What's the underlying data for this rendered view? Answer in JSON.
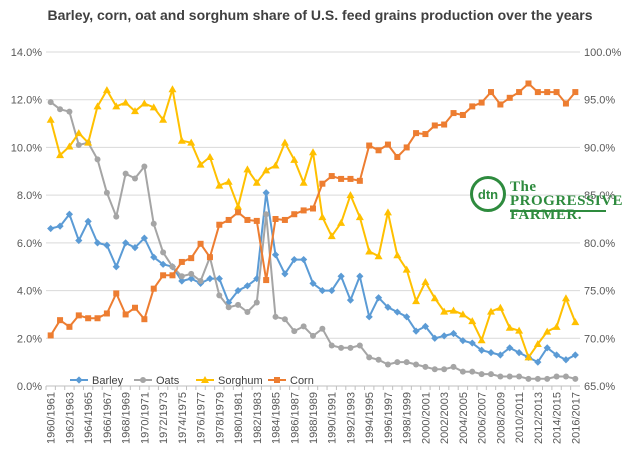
{
  "chart_data": {
    "type": "line",
    "title": "Barley, corn, oat and sorghum share of U.S. feed grains production over the years",
    "categories": [
      "1960/1961",
      "1961/1962",
      "1962/1963",
      "1963/1964",
      "1964/1965",
      "1965/1966",
      "1966/1967",
      "1967/1968",
      "1968/1969",
      "1969/1970",
      "1970/1971",
      "1971/1972",
      "1972/1973",
      "1973/1974",
      "1974/1975",
      "1975/1976",
      "1976/1977",
      "1977/1978",
      "1978/1979",
      "1979/1980",
      "1980/1981",
      "1981/1982",
      "1982/1983",
      "1983/1984",
      "1984/1985",
      "1985/1986",
      "1986/1987",
      "1987/1988",
      "1988/1989",
      "1989/1990",
      "1990/1991",
      "1991/1992",
      "1992/1993",
      "1993/1994",
      "1994/1995",
      "1995/1996",
      "1996/1997",
      "1997/1998",
      "1998/1999",
      "1999/2000",
      "2000/2001",
      "2001/2002",
      "2002/2003",
      "2003/2004",
      "2004/2005",
      "2005/2006",
      "2006/2007",
      "2007/2008",
      "2008/2009",
      "2009/2010",
      "2010/2011",
      "2011/2012",
      "2012/2013",
      "2013/2014",
      "2014/2015",
      "2015/2016",
      "2016/2017"
    ],
    "tick_labels": [
      "1960/1961",
      "1962/1963",
      "1964/1965",
      "1966/1967",
      "1968/1969",
      "1970/1971",
      "1972/1973",
      "1974/1975",
      "1976/1977",
      "1978/1979",
      "1980/1981",
      "1982/1983",
      "1984/1985",
      "1986/1987",
      "1988/1989",
      "1990/1991",
      "1992/1993",
      "1994/1995",
      "1996/1997",
      "1998/1999",
      "2000/2001",
      "2002/2003",
      "2004/2005",
      "2006/2007",
      "2008/2009",
      "2010/2011",
      "2012/2013",
      "2014/2015",
      "2016/2017"
    ],
    "y_left": {
      "min": 0,
      "max": 14,
      "step": 2,
      "tick_labels": [
        "0.0%",
        "2.0%",
        "4.0%",
        "6.0%",
        "8.0%",
        "10.0%",
        "12.0%",
        "14.0%"
      ]
    },
    "y_right": {
      "min": 65,
      "max": 100,
      "step": 5,
      "tick_labels": [
        "65.0%",
        "70.0%",
        "75.0%",
        "80.0%",
        "85.0%",
        "90.0%",
        "95.0%",
        "100.0%"
      ]
    },
    "grid": true,
    "legend": "bottom-left",
    "series": [
      {
        "name": "Barley",
        "axis": "left",
        "color": "#5b9bd5",
        "marker": "diamond",
        "values": [
          6.6,
          6.7,
          7.2,
          6.1,
          6.9,
          6.0,
          5.9,
          5.0,
          6.0,
          5.8,
          6.2,
          5.4,
          5.1,
          5.0,
          4.4,
          4.5,
          4.3,
          4.5,
          4.5,
          3.5,
          4.0,
          4.2,
          4.5,
          8.1,
          5.5,
          4.7,
          5.3,
          5.3,
          4.3,
          4.0,
          4.0,
          4.6,
          3.6,
          4.6,
          2.9,
          3.7,
          3.3,
          3.1,
          2.9,
          2.3,
          2.5,
          2.0,
          2.1,
          2.2,
          1.9,
          1.8,
          1.5,
          1.4,
          1.3,
          1.6,
          1.4,
          1.2,
          1.0,
          1.6,
          1.3,
          1.1,
          1.3
        ]
      },
      {
        "name": "Oats",
        "axis": "left",
        "color": "#a5a5a5",
        "marker": "circle",
        "values": [
          11.9,
          11.6,
          11.5,
          10.1,
          10.2,
          9.5,
          8.1,
          7.1,
          8.9,
          8.7,
          9.2,
          6.8,
          5.6,
          5.0,
          4.6,
          4.7,
          4.4,
          5.4,
          3.8,
          3.3,
          3.4,
          3.1,
          3.5,
          7.2,
          2.9,
          2.8,
          2.3,
          2.5,
          2.1,
          2.4,
          1.7,
          1.6,
          1.6,
          1.7,
          1.2,
          1.1,
          0.9,
          1.0,
          1.0,
          0.9,
          0.8,
          0.7,
          0.7,
          0.8,
          0.6,
          0.6,
          0.5,
          0.5,
          0.4,
          0.4,
          0.4,
          0.3,
          0.3,
          0.3,
          0.4,
          0.4,
          0.3
        ]
      },
      {
        "name": "Sorghum",
        "axis": "right",
        "color": "#ffc000",
        "marker": "triangle",
        "values": [
          92.9,
          89.2,
          90.1,
          91.5,
          90.5,
          94.3,
          96.0,
          94.3,
          94.7,
          93.8,
          94.6,
          94.2,
          92.9,
          96.1,
          90.7,
          90.5,
          88.2,
          89.0,
          86.0,
          86.4,
          83.8,
          87.7,
          86.3,
          87.6,
          88.1,
          90.5,
          88.7,
          86.3,
          89.5,
          82.7,
          80.7,
          82.1,
          85.0,
          82.7,
          79.1,
          78.6,
          83.2,
          78.7,
          77.2,
          73.9,
          75.9,
          74.2,
          72.8,
          72.9,
          72.5,
          71.8,
          69.8,
          72.8,
          73.2,
          71.1,
          70.8,
          68.0,
          69.4,
          70.7,
          71.2,
          74.2,
          71.7
        ]
      },
      {
        "name": "Corn",
        "axis": "right",
        "color": "#ed7d31",
        "marker": "square",
        "values": [
          70.3,
          71.9,
          71.2,
          72.4,
          72.1,
          72.1,
          72.6,
          74.7,
          72.5,
          73.2,
          72.0,
          75.2,
          76.6,
          76.6,
          78.0,
          78.4,
          79.9,
          78.5,
          81.9,
          82.4,
          83.2,
          82.4,
          82.3,
          76.1,
          82.5,
          82.4,
          83.0,
          83.4,
          83.6,
          86.2,
          87.0,
          86.7,
          86.7,
          86.5,
          90.2,
          89.7,
          90.3,
          89.0,
          90.0,
          91.5,
          91.4,
          92.3,
          92.4,
          93.6,
          93.4,
          94.3,
          94.7,
          95.8,
          94.5,
          95.2,
          95.8,
          96.7,
          95.8,
          95.8,
          95.8,
          94.6,
          95.8
        ]
      }
    ]
  },
  "logo": {
    "badge_text": "dtn",
    "name_line1": "The PROGRESSIVE",
    "name_line2": "FARMER."
  }
}
